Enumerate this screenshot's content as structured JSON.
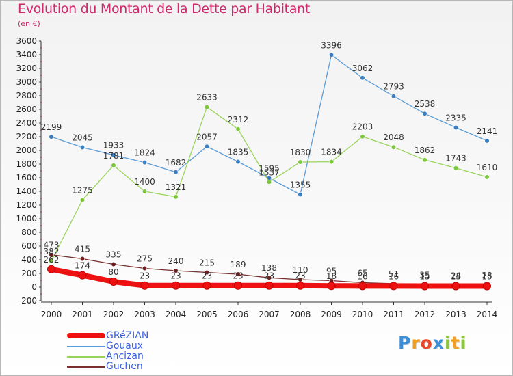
{
  "header": {
    "title": "Evolution du Montant de la Dette par Habitant",
    "unit": "(en €)"
  },
  "logo": {
    "text": "Proxiti",
    "letters": [
      {
        "ch": "P",
        "color": "#3b8ed8"
      },
      {
        "ch": "r",
        "color": "#f0a020"
      },
      {
        "ch": "o",
        "color": "#e8482c"
      },
      {
        "ch": "x",
        "color": "#3b8ed8"
      },
      {
        "ch": "i",
        "color": "#8cc63f"
      },
      {
        "ch": "t",
        "color": "#f0a020"
      },
      {
        "ch": "i",
        "color": "#8cc63f"
      }
    ]
  },
  "chart_data": {
    "type": "line",
    "title": "Evolution du Montant de la Dette par Habitant",
    "subtitle": "(en €)",
    "x": [
      2000,
      2001,
      2002,
      2003,
      2004,
      2005,
      2006,
      2007,
      2008,
      2009,
      2010,
      2011,
      2012,
      2013,
      2014
    ],
    "ylim": [
      -200,
      3600
    ],
    "yticks": [
      -200,
      0,
      200,
      400,
      600,
      800,
      1000,
      1200,
      1400,
      1600,
      1800,
      2000,
      2200,
      2400,
      2600,
      2800,
      3000,
      3200,
      3400,
      3600
    ],
    "grid": false,
    "legend_position": "bottom-left",
    "series": [
      {
        "name": "GRéZIAN",
        "color": "#ee1111",
        "marker": "#ee1111",
        "width": 8,
        "values": [
          262,
          174,
          80,
          23,
          23,
          23,
          23,
          23,
          23,
          18,
          16,
          16,
          15,
          15,
          15
        ]
      },
      {
        "name": "Gouaux",
        "color": "#5b9bd5",
        "marker": "#3c7fc0",
        "width": 1.3,
        "values": [
          2199,
          2045,
          1933,
          1824,
          1682,
          2057,
          1835,
          1595,
          1355,
          3396,
          3062,
          2793,
          2538,
          2335,
          2141
        ]
      },
      {
        "name": "Ancizan",
        "color": "#99d45a",
        "marker": "#7cc63a",
        "width": 1.3,
        "values": [
          382,
          1275,
          1781,
          1400,
          1321,
          2633,
          2312,
          1537,
          1830,
          1834,
          2203,
          2048,
          1862,
          1743,
          1610
        ]
      },
      {
        "name": "Guchen",
        "color": "#7a2f2f",
        "marker": "#6b1f1f",
        "width": 1.3,
        "values": [
          473,
          415,
          335,
          275,
          240,
          215,
          189,
          138,
          110,
          95,
          65,
          51,
          35,
          24,
          28
        ]
      }
    ],
    "data_labels": [
      [
        {
          "t": "262",
          "s": "262"
        },
        {
          "t": "174",
          "s": "174"
        },
        {
          "t": "80",
          "s": "80"
        },
        {
          "t": "23",
          "s": "23"
        },
        {
          "t": "23",
          "s": "23"
        },
        {
          "t": "23",
          "s": "23"
        },
        {
          "t": "23",
          "s": "23"
        },
        {
          "t": "23",
          "s": "23"
        },
        {
          "t": "23",
          "s": "23"
        },
        {
          "t": "18",
          "s": "18"
        },
        {
          "t": "16",
          "s": "16"
        },
        {
          "t": "16",
          "s": "16"
        },
        {
          "t": "15",
          "s": "15"
        },
        {
          "t": "15",
          "s": "15"
        },
        {
          "t": "15",
          "s": "15"
        }
      ]
    ]
  }
}
